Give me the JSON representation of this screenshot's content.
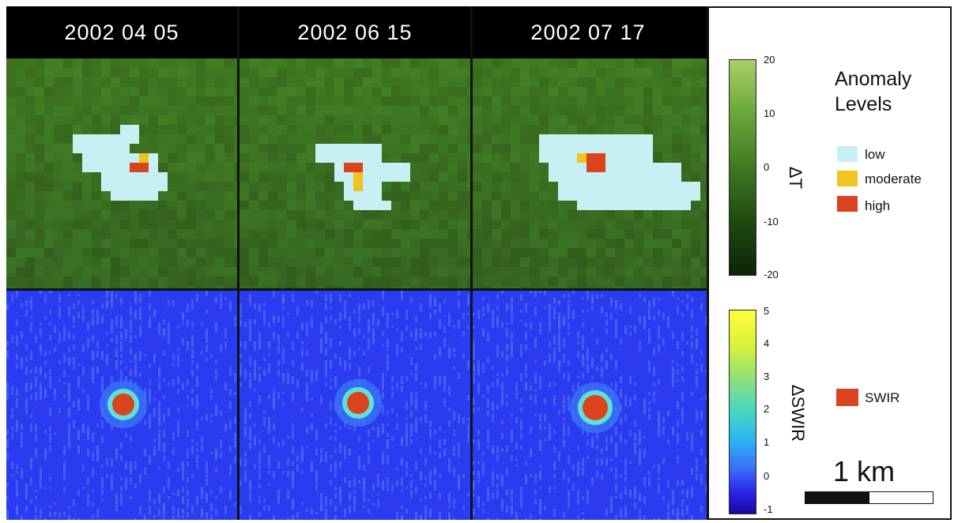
{
  "dates": [
    "2002 04 05",
    "2002 06 15",
    "2002 07 17"
  ],
  "thermal_colorbar": {
    "label": "ΔT",
    "ticks": [
      "20",
      "10",
      "0",
      "-10",
      "-20"
    ]
  },
  "swir_colorbar": {
    "label": "ΔSWIR",
    "ticks": [
      "5",
      "4",
      "3",
      "2",
      "1",
      "0",
      "-1"
    ]
  },
  "legend": {
    "title_line1": "Anomaly",
    "title_line2": "Levels",
    "items": [
      {
        "label": "low",
        "color": "#c8f0f4"
      },
      {
        "label": "moderate",
        "color": "#f2c21e"
      },
      {
        "label": "high",
        "color": "#d9441f"
      }
    ],
    "swir": {
      "label": "SWIR",
      "color": "#d9441f"
    }
  },
  "scale": {
    "label": "1 km"
  },
  "colors": {
    "green_field": "#3f7a21",
    "blue_field": "#2b3cf0",
    "anomaly_low": "#c8f0f4",
    "anomaly_moderate": "#f2c21e",
    "anomaly_high": "#d9441f"
  }
}
